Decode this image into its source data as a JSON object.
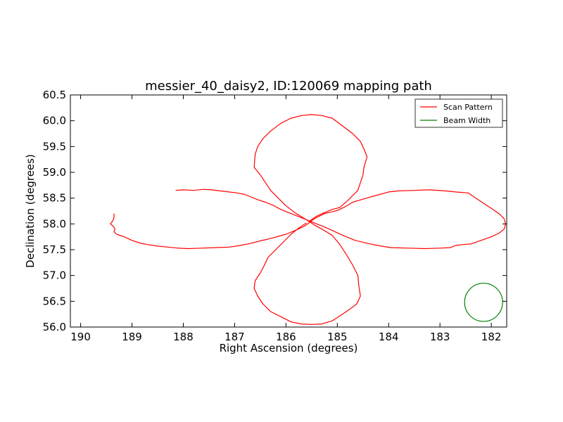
{
  "chart_data": {
    "type": "line",
    "title": "messier_40_daisy2, ID:120069 mapping path",
    "xlabel": "Right Ascension (degrees)",
    "ylabel": "Declination (degrees)",
    "xlim": [
      190.2,
      181.7
    ],
    "ylim": [
      56.0,
      60.5
    ],
    "x_inverted": true,
    "xticks": [
      "190",
      "189",
      "188",
      "187",
      "186",
      "185",
      "184",
      "183",
      "182"
    ],
    "yticks": [
      "56.0",
      "56.5",
      "57.0",
      "57.5",
      "58.0",
      "58.5",
      "59.0",
      "59.5",
      "60.0",
      "60.5"
    ],
    "grid": false,
    "legend_position": "top-right",
    "colors": {
      "scan": "#ff0000",
      "beam": "#008000"
    },
    "series": [
      {
        "name": "Scan Pattern",
        "color": "#ff0000",
        "points": [
          [
            188.15,
            58.65
          ],
          [
            188.0,
            58.66
          ],
          [
            187.8,
            58.65
          ],
          [
            187.6,
            58.67
          ],
          [
            187.45,
            58.66
          ],
          [
            187.2,
            58.63
          ],
          [
            186.95,
            58.6
          ],
          [
            186.8,
            58.57
          ],
          [
            186.7,
            58.53
          ],
          [
            186.55,
            58.47
          ],
          [
            186.4,
            58.42
          ],
          [
            186.25,
            58.36
          ],
          [
            186.1,
            58.28
          ],
          [
            185.9,
            58.2
          ],
          [
            185.7,
            58.12
          ],
          [
            185.55,
            58.06
          ],
          [
            185.45,
            58.02
          ],
          [
            185.25,
            57.94
          ],
          [
            185.05,
            57.85
          ],
          [
            184.85,
            57.76
          ],
          [
            184.65,
            57.68
          ],
          [
            184.4,
            57.62
          ],
          [
            184.15,
            57.57
          ],
          [
            183.95,
            57.54
          ],
          [
            183.6,
            57.53
          ],
          [
            183.3,
            57.52
          ],
          [
            183.0,
            57.53
          ],
          [
            182.8,
            57.54
          ],
          [
            182.7,
            57.58
          ],
          [
            182.55,
            57.6
          ],
          [
            182.4,
            57.61
          ],
          [
            182.2,
            57.68
          ],
          [
            182.0,
            57.75
          ],
          [
            181.85,
            57.82
          ],
          [
            181.75,
            57.9
          ],
          [
            181.72,
            58.0
          ],
          [
            181.75,
            58.1
          ],
          [
            181.85,
            58.2
          ],
          [
            182.0,
            58.3
          ],
          [
            182.15,
            58.4
          ],
          [
            182.3,
            58.5
          ],
          [
            182.45,
            58.6
          ],
          [
            182.7,
            58.62
          ],
          [
            182.9,
            58.64
          ],
          [
            183.2,
            58.66
          ],
          [
            183.5,
            58.65
          ],
          [
            183.8,
            58.64
          ],
          [
            184.0,
            58.62
          ],
          [
            184.25,
            58.55
          ],
          [
            184.5,
            58.48
          ],
          [
            184.7,
            58.42
          ],
          [
            184.85,
            58.33
          ],
          [
            185.0,
            58.26
          ],
          [
            185.25,
            58.2
          ],
          [
            185.45,
            58.1
          ],
          [
            185.55,
            58.02
          ],
          [
            185.65,
            57.95
          ],
          [
            185.8,
            57.88
          ],
          [
            186.0,
            57.8
          ],
          [
            186.25,
            57.73
          ],
          [
            186.5,
            57.67
          ],
          [
            186.7,
            57.62
          ],
          [
            186.9,
            57.58
          ],
          [
            187.1,
            57.55
          ],
          [
            187.4,
            57.54
          ],
          [
            187.65,
            57.53
          ],
          [
            187.9,
            57.52
          ],
          [
            188.1,
            57.53
          ],
          [
            188.3,
            57.55
          ],
          [
            188.5,
            57.57
          ],
          [
            188.7,
            57.6
          ],
          [
            188.85,
            57.63
          ],
          [
            189.0,
            57.68
          ],
          [
            189.15,
            57.75
          ],
          [
            189.3,
            57.8
          ],
          [
            189.35,
            57.85
          ],
          [
            189.33,
            57.9
          ],
          [
            189.36,
            57.95
          ],
          [
            189.42,
            58.0
          ],
          [
            189.38,
            58.05
          ],
          [
            189.35,
            58.12
          ],
          [
            189.35,
            58.2
          ]
        ]
      },
      {
        "name": "",
        "color": "#ff0000",
        "points": [
          [
            185.55,
            58.05
          ],
          [
            185.4,
            58.15
          ],
          [
            185.25,
            58.22
          ],
          [
            185.1,
            58.28
          ],
          [
            184.95,
            58.32
          ],
          [
            184.8,
            58.45
          ],
          [
            184.7,
            58.55
          ],
          [
            184.6,
            58.65
          ],
          [
            184.55,
            58.8
          ],
          [
            184.5,
            58.95
          ],
          [
            184.48,
            59.1
          ],
          [
            184.42,
            59.3
          ],
          [
            184.48,
            59.45
          ],
          [
            184.55,
            59.6
          ],
          [
            184.7,
            59.75
          ],
          [
            184.9,
            59.9
          ],
          [
            185.1,
            60.05
          ],
          [
            185.3,
            60.1
          ],
          [
            185.5,
            60.12
          ],
          [
            185.7,
            60.1
          ],
          [
            185.9,
            60.05
          ],
          [
            186.1,
            59.95
          ],
          [
            186.3,
            59.8
          ],
          [
            186.45,
            59.65
          ],
          [
            186.55,
            59.5
          ],
          [
            186.6,
            59.35
          ],
          [
            186.62,
            59.1
          ],
          [
            186.5,
            58.95
          ],
          [
            186.4,
            58.8
          ],
          [
            186.3,
            58.65
          ],
          [
            186.15,
            58.5
          ],
          [
            186.0,
            58.35
          ],
          [
            185.8,
            58.2
          ],
          [
            185.6,
            58.08
          ],
          [
            185.45,
            57.98
          ],
          [
            185.3,
            57.9
          ],
          [
            185.1,
            57.78
          ],
          [
            184.95,
            57.6
          ],
          [
            184.82,
            57.4
          ],
          [
            184.7,
            57.2
          ],
          [
            184.6,
            57.0
          ],
          [
            184.58,
            56.8
          ],
          [
            184.55,
            56.6
          ],
          [
            184.62,
            56.45
          ],
          [
            184.75,
            56.35
          ],
          [
            184.9,
            56.25
          ],
          [
            185.1,
            56.12
          ],
          [
            185.3,
            56.06
          ],
          [
            185.5,
            56.05
          ],
          [
            185.7,
            56.06
          ],
          [
            185.9,
            56.1
          ],
          [
            186.1,
            56.2
          ],
          [
            186.3,
            56.3
          ],
          [
            186.45,
            56.45
          ],
          [
            186.55,
            56.6
          ],
          [
            186.62,
            56.75
          ],
          [
            186.6,
            56.9
          ],
          [
            186.5,
            57.05
          ],
          [
            186.42,
            57.2
          ],
          [
            186.35,
            57.35
          ],
          [
            186.2,
            57.5
          ],
          [
            186.05,
            57.65
          ],
          [
            185.9,
            57.8
          ],
          [
            185.75,
            57.92
          ],
          [
            185.6,
            58.02
          ]
        ]
      },
      {
        "name": "Beam Width",
        "color": "#008000",
        "type": "circle",
        "center": [
          182.15,
          56.48
        ],
        "radius_deg": 0.37
      }
    ]
  }
}
